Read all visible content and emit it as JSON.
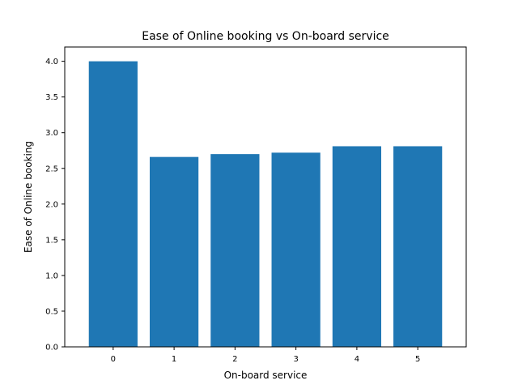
{
  "chart_data": {
    "type": "bar",
    "title": "Ease of Online booking vs On-board service",
    "xlabel": "On-board service",
    "ylabel": "Ease of Online booking",
    "categories": [
      "0",
      "1",
      "2",
      "3",
      "4",
      "5"
    ],
    "values": [
      4.0,
      2.66,
      2.7,
      2.72,
      2.81,
      2.81
    ],
    "ylim": [
      0,
      4.2
    ],
    "yticks": [
      "0.0",
      "0.5",
      "1.0",
      "1.5",
      "2.0",
      "2.5",
      "3.0",
      "3.5",
      "4.0"
    ],
    "grid": false,
    "bar_color": "#1f77b4"
  }
}
